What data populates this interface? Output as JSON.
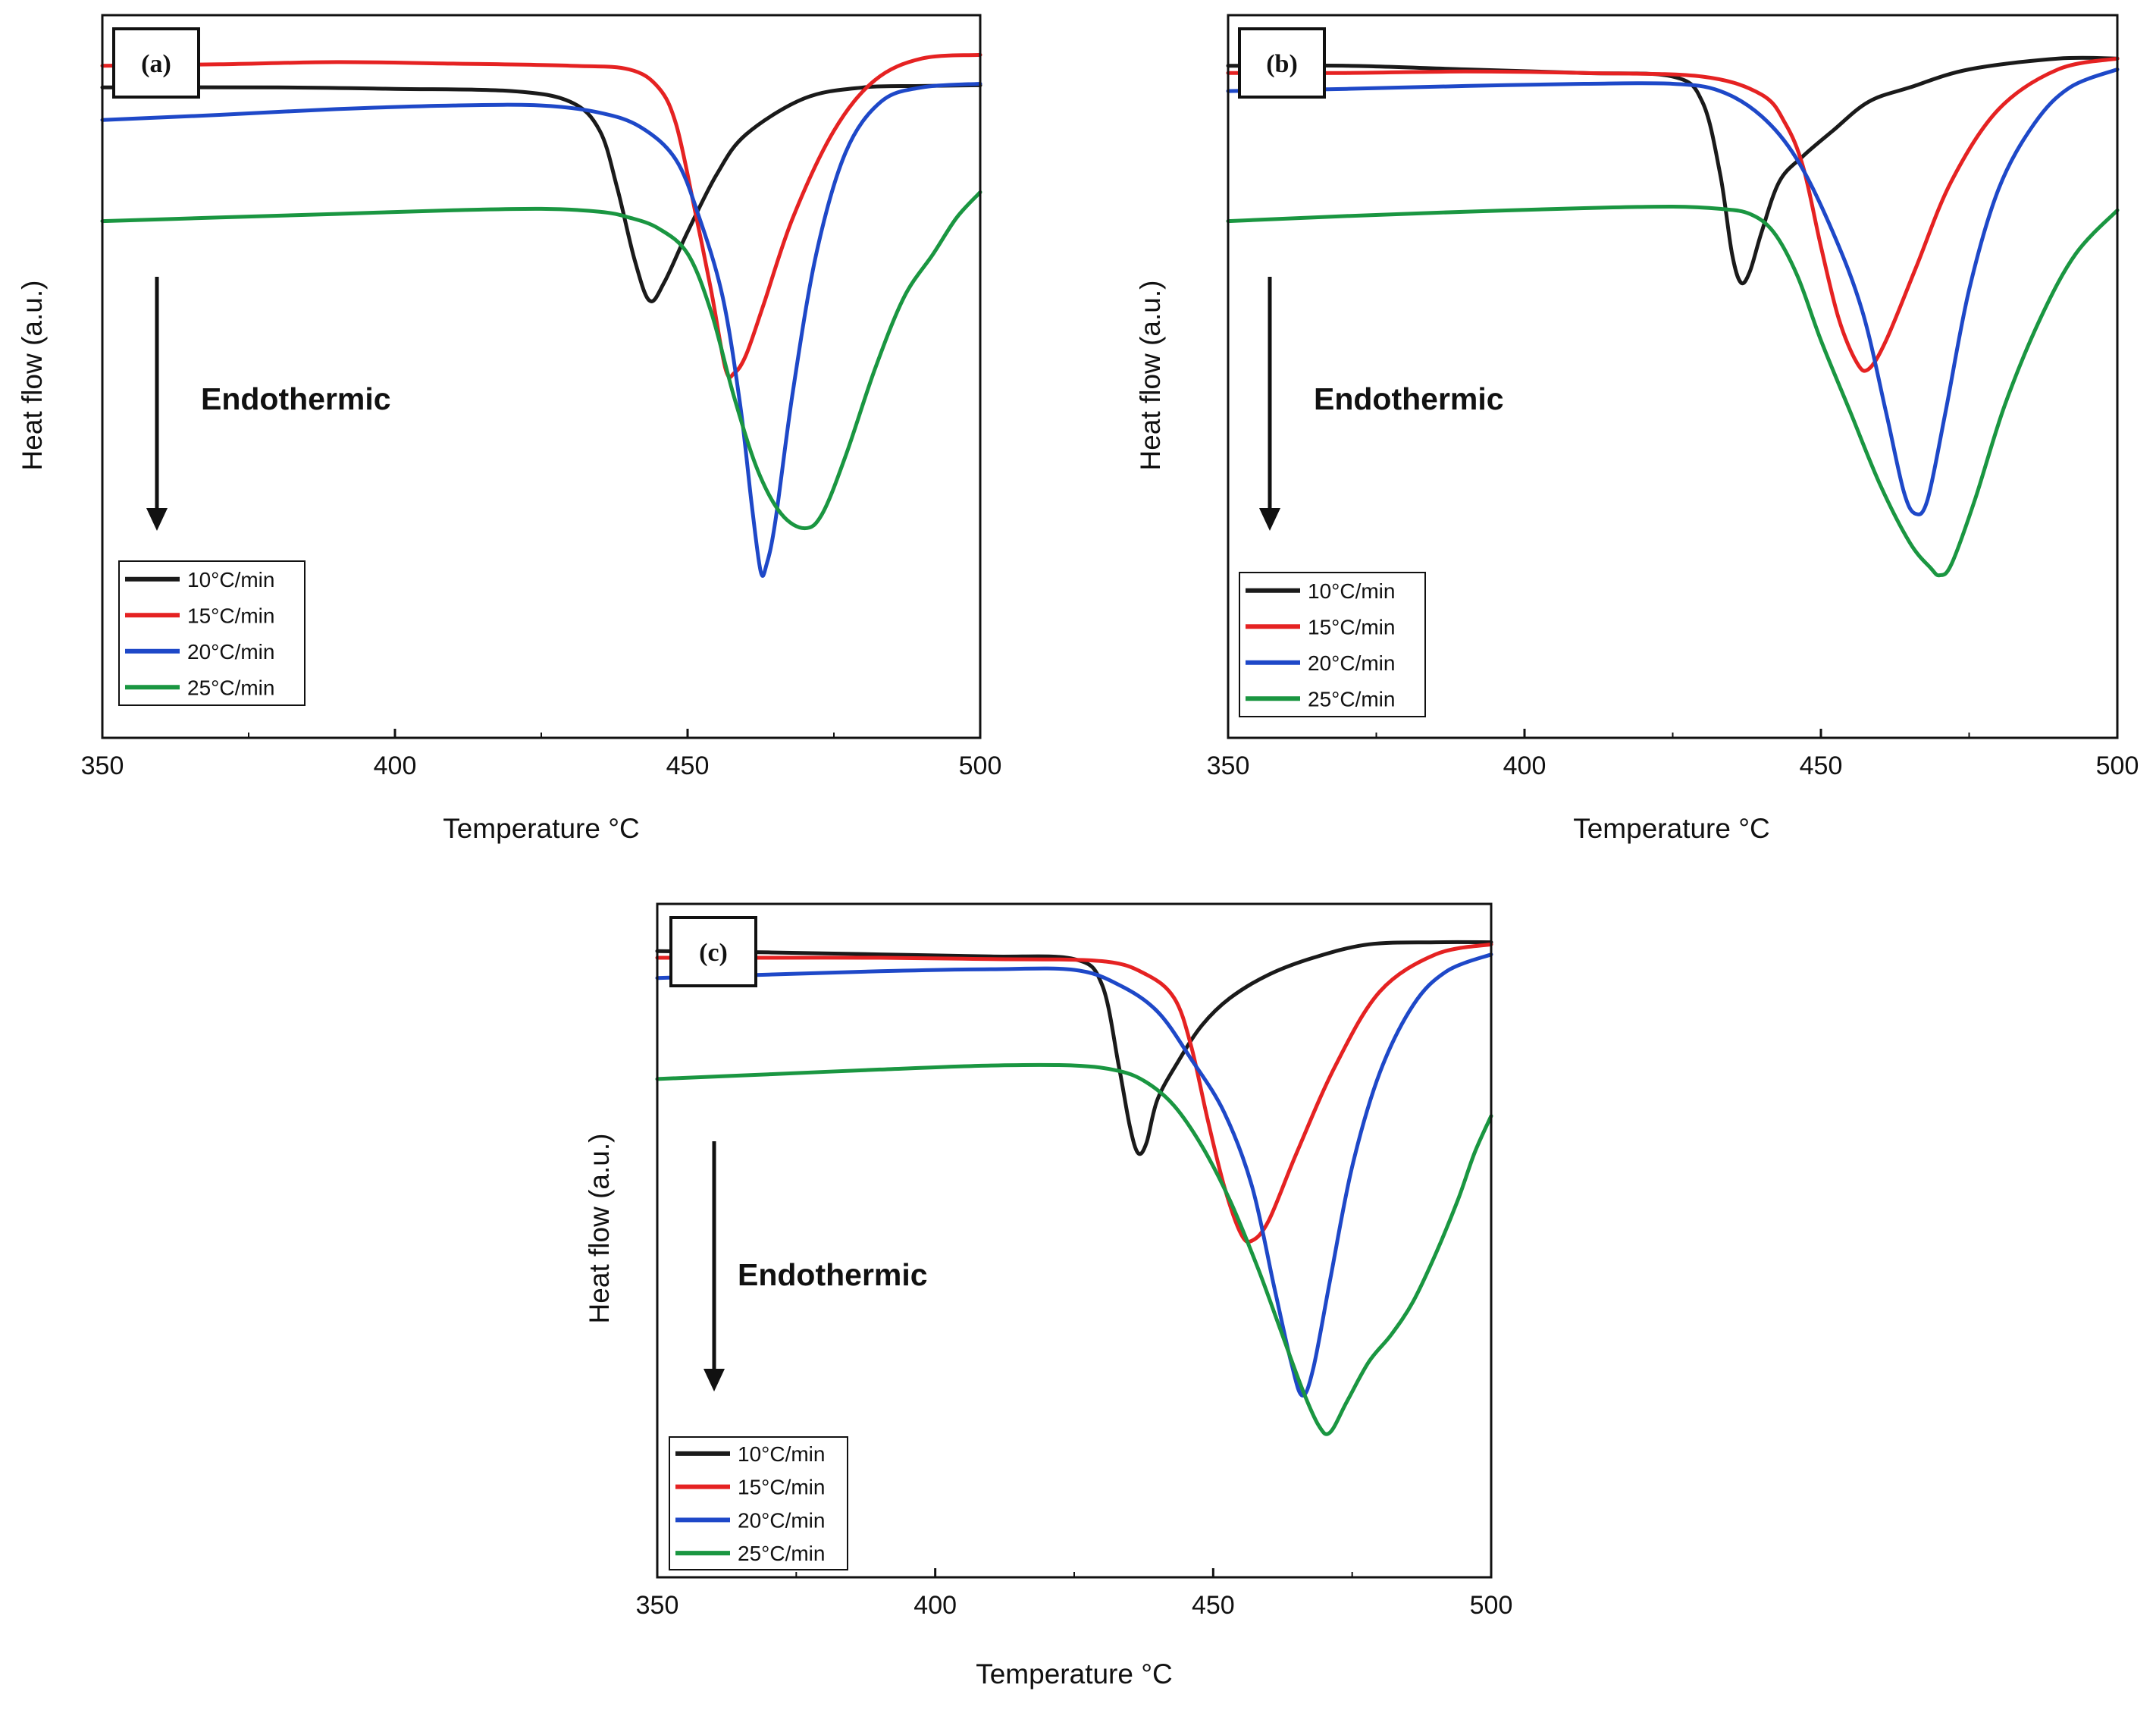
{
  "chart_data": [
    {
      "panel": "(a)",
      "type": "line",
      "xlabel": "Temperature °C",
      "ylabel": "Heat flow (a.u.)",
      "xlim": [
        350,
        500
      ],
      "ylim": [
        0,
        100
      ],
      "xticks": [
        "350",
        "400",
        "450",
        "500"
      ],
      "annotation": "Endothermic",
      "legend_position": "bottom-left",
      "series": [
        {
          "name": "10°C/min",
          "color": "#1a1a1a",
          "points": [
            [
              350,
              90
            ],
            [
              380,
              90
            ],
            [
              400,
              89.8
            ],
            [
              420,
              89.5
            ],
            [
              430,
              88
            ],
            [
              435,
              84
            ],
            [
              438,
              76
            ],
            [
              441,
              66
            ],
            [
              443.5,
              60.5
            ],
            [
              446,
              63
            ],
            [
              450,
              70
            ],
            [
              455,
              78
            ],
            [
              460,
              83.5
            ],
            [
              470,
              88.5
            ],
            [
              480,
              90
            ],
            [
              490,
              90.2
            ],
            [
              500,
              90.3
            ]
          ]
        },
        {
          "name": "15°C/min",
          "color": "#e52222",
          "points": [
            [
              350,
              93
            ],
            [
              370,
              93.2
            ],
            [
              390,
              93.5
            ],
            [
              410,
              93.3
            ],
            [
              430,
              93
            ],
            [
              440,
              92.5
            ],
            [
              445,
              90
            ],
            [
              448,
              85
            ],
            [
              451,
              74
            ],
            [
              454,
              62
            ],
            [
              456.5,
              51
            ],
            [
              458,
              50.5
            ],
            [
              460,
              53
            ],
            [
              463,
              60
            ],
            [
              468,
              72
            ],
            [
              475,
              84
            ],
            [
              482,
              91
            ],
            [
              490,
              94
            ],
            [
              500,
              94.5
            ]
          ]
        },
        {
          "name": "20°C/min",
          "color": "#1e48c8",
          "points": [
            [
              350,
              85.5
            ],
            [
              370,
              86.2
            ],
            [
              390,
              87
            ],
            [
              410,
              87.5
            ],
            [
              425,
              87.5
            ],
            [
              435,
              86.5
            ],
            [
              442,
              84.5
            ],
            [
              448,
              80
            ],
            [
              452,
              72
            ],
            [
              456,
              61
            ],
            [
              459,
              46
            ],
            [
              461,
              32
            ],
            [
              462.5,
              23
            ],
            [
              463.5,
              24
            ],
            [
              465,
              30
            ],
            [
              468,
              48
            ],
            [
              472,
              67
            ],
            [
              477,
              81
            ],
            [
              483,
              88
            ],
            [
              490,
              90
            ],
            [
              500,
              90.5
            ]
          ]
        },
        {
          "name": "25°C/min",
          "color": "#1a9641",
          "points": [
            [
              350,
              71.5
            ],
            [
              370,
              72
            ],
            [
              390,
              72.5
            ],
            [
              410,
              73
            ],
            [
              425,
              73.2
            ],
            [
              435,
              72.8
            ],
            [
              440,
              72
            ],
            [
              445,
              70.5
            ],
            [
              450,
              67
            ],
            [
              454,
              59
            ],
            [
              458,
              47
            ],
            [
              462,
              37
            ],
            [
              466,
              31
            ],
            [
              470,
              29
            ],
            [
              473,
              31
            ],
            [
              477,
              39
            ],
            [
              482,
              51
            ],
            [
              487,
              61
            ],
            [
              492,
              67
            ],
            [
              496,
              72
            ],
            [
              500,
              75.5
            ]
          ]
        }
      ]
    },
    {
      "panel": "(b)",
      "type": "line",
      "xlabel": "Temperature °C",
      "ylabel": "Heat flow (a.u.)",
      "xlim": [
        350,
        500
      ],
      "ylim": [
        0,
        100
      ],
      "xticks": [
        "350",
        "400",
        "450",
        "500"
      ],
      "annotation": "Endothermic",
      "legend_position": "bottom-left",
      "series": [
        {
          "name": "10°C/min",
          "color": "#1a1a1a",
          "points": [
            [
              350,
              93
            ],
            [
              370,
              93
            ],
            [
              390,
              92.5
            ],
            [
              410,
              92
            ],
            [
              425,
              91.5
            ],
            [
              430,
              88
            ],
            [
              433,
              78
            ],
            [
              435,
              67
            ],
            [
              436.5,
              63
            ],
            [
              438,
              64.5
            ],
            [
              440,
              70
            ],
            [
              443,
              77
            ],
            [
              447,
              80.5
            ],
            [
              452,
              84
            ],
            [
              458,
              88
            ],
            [
              465,
              90
            ],
            [
              475,
              92.5
            ],
            [
              490,
              94
            ],
            [
              500,
              94
            ]
          ]
        },
        {
          "name": "15°C/min",
          "color": "#e52222",
          "points": [
            [
              350,
              92
            ],
            [
              370,
              92
            ],
            [
              390,
              92.2
            ],
            [
              410,
              92
            ],
            [
              430,
              91.5
            ],
            [
              440,
              89
            ],
            [
              444,
              85
            ],
            [
              447,
              79
            ],
            [
              450,
              68
            ],
            [
              453,
              58
            ],
            [
              456,
              52
            ],
            [
              458,
              51
            ],
            [
              461,
              55
            ],
            [
              466,
              65
            ],
            [
              472,
              77
            ],
            [
              480,
              87
            ],
            [
              490,
              92.5
            ],
            [
              500,
              94
            ]
          ]
        },
        {
          "name": "20°C/min",
          "color": "#1e48c8",
          "points": [
            [
              350,
              89.5
            ],
            [
              370,
              89.8
            ],
            [
              390,
              90.2
            ],
            [
              410,
              90.5
            ],
            [
              425,
              90.5
            ],
            [
              433,
              89.5
            ],
            [
              440,
              86
            ],
            [
              446,
              80
            ],
            [
              452,
              70
            ],
            [
              457,
              59
            ],
            [
              461,
              45
            ],
            [
              464,
              34
            ],
            [
              466,
              31
            ],
            [
              468,
              33
            ],
            [
              471,
              45
            ],
            [
              475,
              62
            ],
            [
              480,
              76
            ],
            [
              486,
              85
            ],
            [
              492,
              90
            ],
            [
              500,
              92.5
            ]
          ]
        },
        {
          "name": "25°C/min",
          "color": "#1a9641",
          "points": [
            [
              350,
              71.5
            ],
            [
              370,
              72.2
            ],
            [
              390,
              72.8
            ],
            [
              410,
              73.3
            ],
            [
              425,
              73.5
            ],
            [
              433,
              73.2
            ],
            [
              438,
              72.5
            ],
            [
              442,
              70
            ],
            [
              446,
              64
            ],
            [
              450,
              55
            ],
            [
              455,
              45
            ],
            [
              460,
              35
            ],
            [
              465,
              27
            ],
            [
              468.5,
              23.5
            ],
            [
              470,
              22.5
            ],
            [
              472,
              24
            ],
            [
              476,
              33
            ],
            [
              481,
              46
            ],
            [
              487,
              58
            ],
            [
              493,
              67
            ],
            [
              500,
              73
            ]
          ]
        }
      ]
    },
    {
      "panel": "(c)",
      "type": "line",
      "xlabel": "Temperature °C",
      "ylabel": "Heat flow (a.u.)",
      "xlim": [
        350,
        500
      ],
      "ylim": [
        0,
        100
      ],
      "xticks": [
        "350",
        "400",
        "450",
        "500"
      ],
      "annotation": "Endothermic",
      "legend_position": "bottom-left",
      "series": [
        {
          "name": "10°C/min",
          "color": "#1a1a1a",
          "points": [
            [
              350,
              93
            ],
            [
              370,
              92.8
            ],
            [
              390,
              92.5
            ],
            [
              410,
              92.2
            ],
            [
              425,
              91.8
            ],
            [
              430,
              88
            ],
            [
              433,
              76
            ],
            [
              435,
              67
            ],
            [
              436.5,
              63
            ],
            [
              438,
              64.5
            ],
            [
              440,
              71
            ],
            [
              444,
              77
            ],
            [
              448,
              82
            ],
            [
              453,
              86
            ],
            [
              460,
              89.5
            ],
            [
              468,
              92
            ],
            [
              478,
              94
            ],
            [
              490,
              94.3
            ],
            [
              500,
              94.3
            ]
          ]
        },
        {
          "name": "15°C/min",
          "color": "#e52222",
          "points": [
            [
              350,
              92
            ],
            [
              370,
              92
            ],
            [
              390,
              92
            ],
            [
              410,
              91.8
            ],
            [
              430,
              91.5
            ],
            [
              438,
              89.5
            ],
            [
              443,
              86
            ],
            [
              446,
              79
            ],
            [
              449,
              68
            ],
            [
              452,
              58
            ],
            [
              455,
              51
            ],
            [
              457,
              50
            ],
            [
              460,
              53
            ],
            [
              465,
              63
            ],
            [
              472,
              76
            ],
            [
              480,
              87
            ],
            [
              490,
              92.5
            ],
            [
              500,
              94
            ]
          ]
        },
        {
          "name": "20°C/min",
          "color": "#1e48c8",
          "points": [
            [
              350,
              89
            ],
            [
              370,
              89.5
            ],
            [
              390,
              90
            ],
            [
              410,
              90.3
            ],
            [
              425,
              90.2
            ],
            [
              433,
              88
            ],
            [
              440,
              84
            ],
            [
              446,
              77
            ],
            [
              452,
              69
            ],
            [
              457,
              58
            ],
            [
              461,
              43
            ],
            [
              464,
              32
            ],
            [
              466,
              27
            ],
            [
              468,
              31
            ],
            [
              471,
              44
            ],
            [
              475,
              61
            ],
            [
              480,
              75
            ],
            [
              486,
              85
            ],
            [
              492,
              90
            ],
            [
              500,
              92.5
            ]
          ]
        },
        {
          "name": "25°C/min",
          "color": "#1a9641",
          "points": [
            [
              350,
              74
            ],
            [
              370,
              74.7
            ],
            [
              390,
              75.4
            ],
            [
              410,
              76
            ],
            [
              425,
              76
            ],
            [
              433,
              75.2
            ],
            [
              438,
              73.5
            ],
            [
              443,
              70
            ],
            [
              448,
              64
            ],
            [
              453,
              56
            ],
            [
              458,
              46
            ],
            [
              462,
              37
            ],
            [
              466,
              28
            ],
            [
              469,
              22.5
            ],
            [
              471,
              21.5
            ],
            [
              474,
              26
            ],
            [
              478,
              32
            ],
            [
              482,
              36
            ],
            [
              486,
              41
            ],
            [
              490,
              48
            ],
            [
              494,
              56
            ],
            [
              497,
              63
            ],
            [
              500,
              68.5
            ]
          ]
        }
      ]
    }
  ]
}
